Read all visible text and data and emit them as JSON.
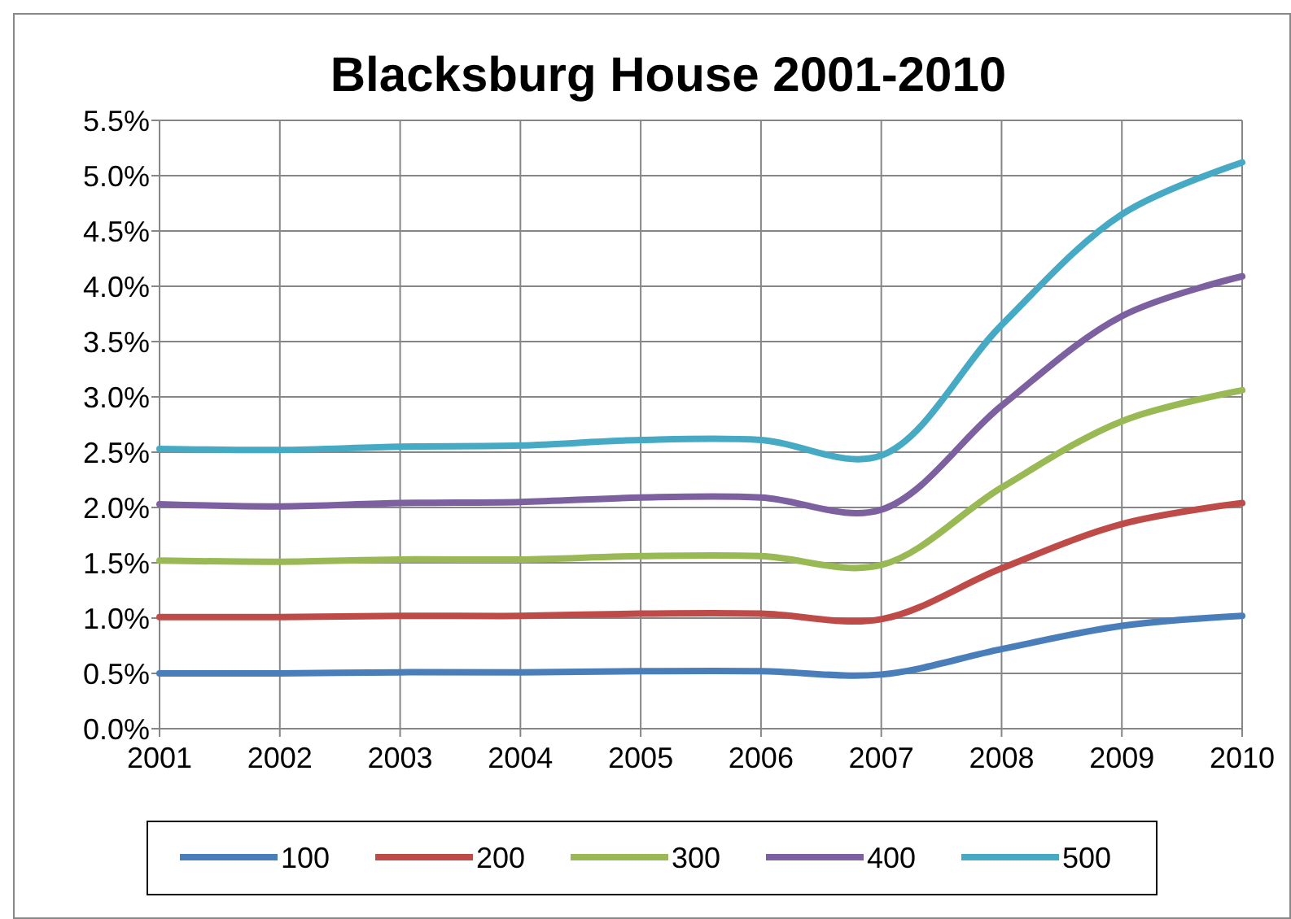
{
  "chart_data": {
    "type": "line",
    "title": "Blacksburg House 2001-2010",
    "x": [
      2001,
      2002,
      2003,
      2004,
      2005,
      2006,
      2007,
      2008,
      2009,
      2010
    ],
    "xlim": [
      2001,
      2010
    ],
    "xticks": [
      2001,
      2002,
      2003,
      2004,
      2005,
      2006,
      2007,
      2008,
      2009,
      2010
    ],
    "ylim": [
      0,
      5.5
    ],
    "yticks": [
      {
        "value": 0,
        "label": "0.0%"
      },
      {
        "value": 0.5,
        "label": "0.5%"
      },
      {
        "value": 1,
        "label": "1.0%"
      },
      {
        "value": 1.5,
        "label": "1.5%"
      },
      {
        "value": 2,
        "label": "2.0%"
      },
      {
        "value": 2.5,
        "label": "2.5%"
      },
      {
        "value": 3,
        "label": "3.0%"
      },
      {
        "value": 3.5,
        "label": "3.5%"
      },
      {
        "value": 4,
        "label": "4.0%"
      },
      {
        "value": 4.5,
        "label": "4.5%"
      },
      {
        "value": 5,
        "label": "5.0%"
      },
      {
        "value": 5.5,
        "label": "5.5%"
      }
    ],
    "grid": true,
    "legend": "bottom",
    "marker": "none",
    "line_style": "solid",
    "series": [
      {
        "name": "100",
        "color": "#4a7ebb",
        "values": [
          0.5,
          0.5,
          0.51,
          0.51,
          0.52,
          0.52,
          0.49,
          0.72,
          0.93,
          1.02
        ]
      },
      {
        "name": "200",
        "color": "#be4b48",
        "values": [
          1.01,
          1.01,
          1.02,
          1.02,
          1.04,
          1.04,
          0.99,
          1.45,
          1.85,
          2.04
        ]
      },
      {
        "name": "300",
        "color": "#98b954",
        "values": [
          1.52,
          1.51,
          1.53,
          1.53,
          1.56,
          1.56,
          1.48,
          2.18,
          2.78,
          3.06
        ]
      },
      {
        "name": "400",
        "color": "#7d60a0",
        "values": [
          2.03,
          2.01,
          2.04,
          2.05,
          2.09,
          2.09,
          1.98,
          2.92,
          3.73,
          4.09
        ]
      },
      {
        "name": "500",
        "color": "#46aac5",
        "values": [
          2.53,
          2.52,
          2.55,
          2.56,
          2.61,
          2.61,
          2.47,
          3.65,
          4.65,
          5.12
        ]
      }
    ]
  }
}
